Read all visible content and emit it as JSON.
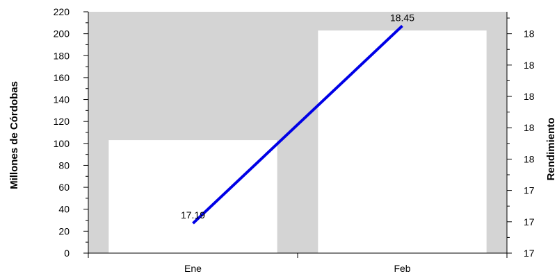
{
  "chart_data": {
    "type": "bar+line",
    "categories": [
      "Ene",
      "Feb"
    ],
    "bars": {
      "axis": "left",
      "values": [
        103,
        203
      ],
      "color": "#ffffff"
    },
    "line": {
      "axis": "right",
      "values": [
        17.19,
        18.45
      ],
      "data_labels": [
        "17.19",
        "18.45"
      ],
      "color": "#0000e6"
    },
    "left_axis": {
      "label": "Millones de Córdobas",
      "min": 0,
      "max": 220,
      "ticks": [
        "0",
        "20",
        "40",
        "60",
        "80",
        "100",
        "120",
        "140",
        "160",
        "180",
        "200",
        "220"
      ]
    },
    "right_axis": {
      "label": "Rendimiento",
      "min": 17.0,
      "max": 18.54,
      "tick_values": [
        17.0,
        17.2,
        17.4,
        17.6,
        17.8,
        18.0,
        18.2,
        18.4
      ],
      "tick_labels": [
        "17",
        "17",
        "17",
        "18",
        "18",
        "18",
        "18",
        "18"
      ]
    },
    "plot_background": "#d4d4d4",
    "grid": false,
    "legend": "none"
  }
}
